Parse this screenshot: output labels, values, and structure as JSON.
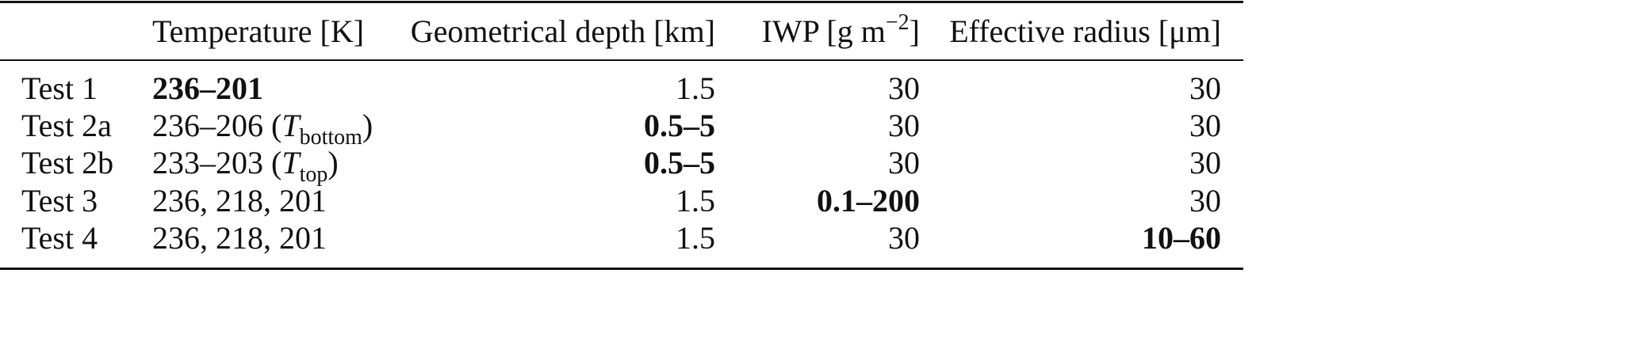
{
  "table": {
    "header": [
      [],
      [
        "Temperature [K]"
      ],
      [
        "Geometrical depth [km]"
      ],
      [
        "IWP [g m",
        {
          "text": "−2",
          "style": "sup"
        },
        "]"
      ],
      [
        "Effective radius [μm]"
      ]
    ],
    "rows": [
      [
        [
          "Test 1"
        ],
        [
          {
            "text": "236–201",
            "style": "bold"
          }
        ],
        [
          "1.5"
        ],
        [
          "30"
        ],
        [
          "30"
        ]
      ],
      [
        [
          "Test 2a"
        ],
        [
          "236–206 (",
          {
            "text": "T",
            "style": "italic"
          },
          {
            "text": "bottom",
            "style": "sub"
          },
          ")"
        ],
        [
          {
            "text": "0.5–5",
            "style": "bold"
          }
        ],
        [
          "30"
        ],
        [
          "30"
        ]
      ],
      [
        [
          "Test 2b"
        ],
        [
          "233–203 (",
          {
            "text": "T",
            "style": "italic"
          },
          {
            "text": "top",
            "style": "sub"
          },
          ")"
        ],
        [
          {
            "text": "0.5–5",
            "style": "bold"
          }
        ],
        [
          "30"
        ],
        [
          "30"
        ]
      ],
      [
        [
          "Test 3"
        ],
        [
          "236, 218, 201"
        ],
        [
          "1.5"
        ],
        [
          {
            "text": "0.1–200",
            "style": "bold"
          }
        ],
        [
          "30"
        ]
      ],
      [
        [
          "Test 4"
        ],
        [
          "236, 218, 201"
        ],
        [
          "1.5"
        ],
        [
          "30"
        ],
        [
          {
            "text": "10–60",
            "style": "bold"
          }
        ]
      ]
    ]
  }
}
